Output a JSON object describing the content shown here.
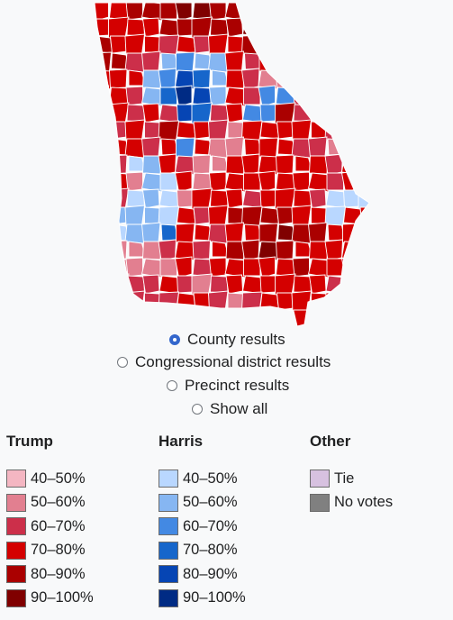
{
  "map": {
    "colors": {
      "r1": "#f4b6c2",
      "r2": "#e27f90",
      "r3": "#cc2f4a",
      "r4": "#d40000",
      "r5": "#aa0000",
      "r6": "#800000",
      "d1": "#b9d7ff",
      "d2": "#86b6f2",
      "d3": "#4389e3",
      "d4": "#1666cb",
      "d5": "#0645b4",
      "d6": "#002b84",
      "border": "#ffffff"
    }
  },
  "options": [
    {
      "label": "County results",
      "selected": true
    },
    {
      "label": "Congressional district results",
      "selected": false
    },
    {
      "label": "Precinct results",
      "selected": false
    },
    {
      "label": "Show all",
      "selected": false
    }
  ],
  "legend": {
    "trump": {
      "title": "Trump",
      "items": [
        {
          "label": "40–50%",
          "color": "#f4b6c2"
        },
        {
          "label": "50–60%",
          "color": "#e27f90"
        },
        {
          "label": "60–70%",
          "color": "#cc2f4a"
        },
        {
          "label": "70–80%",
          "color": "#d40000"
        },
        {
          "label": "80–90%",
          "color": "#aa0000"
        },
        {
          "label": "90–100%",
          "color": "#800000"
        }
      ]
    },
    "harris": {
      "title": "Harris",
      "items": [
        {
          "label": "40–50%",
          "color": "#b9d7ff"
        },
        {
          "label": "50–60%",
          "color": "#86b6f2"
        },
        {
          "label": "60–70%",
          "color": "#4389e3"
        },
        {
          "label": "70–80%",
          "color": "#1666cb"
        },
        {
          "label": "80–90%",
          "color": "#0645b4"
        },
        {
          "label": "90–100%",
          "color": "#002b84"
        }
      ]
    },
    "other": {
      "title": "Other",
      "items": [
        {
          "label": "Tie",
          "color": "#d7c1e0"
        },
        {
          "label": "No votes",
          "color": "#808080"
        }
      ]
    }
  }
}
